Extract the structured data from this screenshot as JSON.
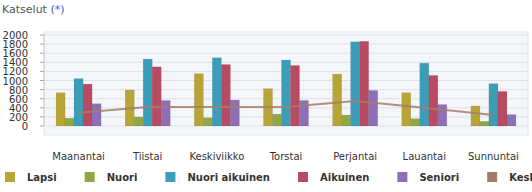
{
  "chart_data": {
    "type": "bar",
    "title": "Katselut (*)",
    "categories": [
      "Maanantai",
      "Tiistai",
      "Keskiviikko",
      "Torstai",
      "Perjantai",
      "Lauantai",
      "Sunnuntai"
    ],
    "series": [
      {
        "name": "Lapsi",
        "color": "#b8a536",
        "values": [
          730,
          790,
          1150,
          820,
          1140,
          730,
          440
        ]
      },
      {
        "name": "Nuori",
        "color": "#8fa845",
        "values": [
          170,
          200,
          180,
          260,
          240,
          160,
          100
        ]
      },
      {
        "name": "Nuori aikuinen",
        "color": "#3b9db8",
        "values": [
          1040,
          1470,
          1500,
          1450,
          1850,
          1380,
          930
        ]
      },
      {
        "name": "Aikuinen",
        "color": "#b84a63",
        "values": [
          920,
          1300,
          1350,
          1330,
          1860,
          1110,
          760
        ]
      },
      {
        "name": "Seniori",
        "color": "#8c6fb5",
        "values": [
          490,
          560,
          570,
          560,
          780,
          470,
          250
        ]
      },
      {
        "name": "Keskiarvo",
        "color": "#a47c6c",
        "type": "line",
        "values": [
          290,
          420,
          420,
          420,
          550,
          400,
          240
        ]
      }
    ],
    "ylim": [
      0,
      2000
    ],
    "yticks": [
      0,
      200,
      400,
      600,
      800,
      1000,
      1200,
      1400,
      1600,
      1800,
      2000
    ],
    "grid": true,
    "legend": "bottom"
  }
}
